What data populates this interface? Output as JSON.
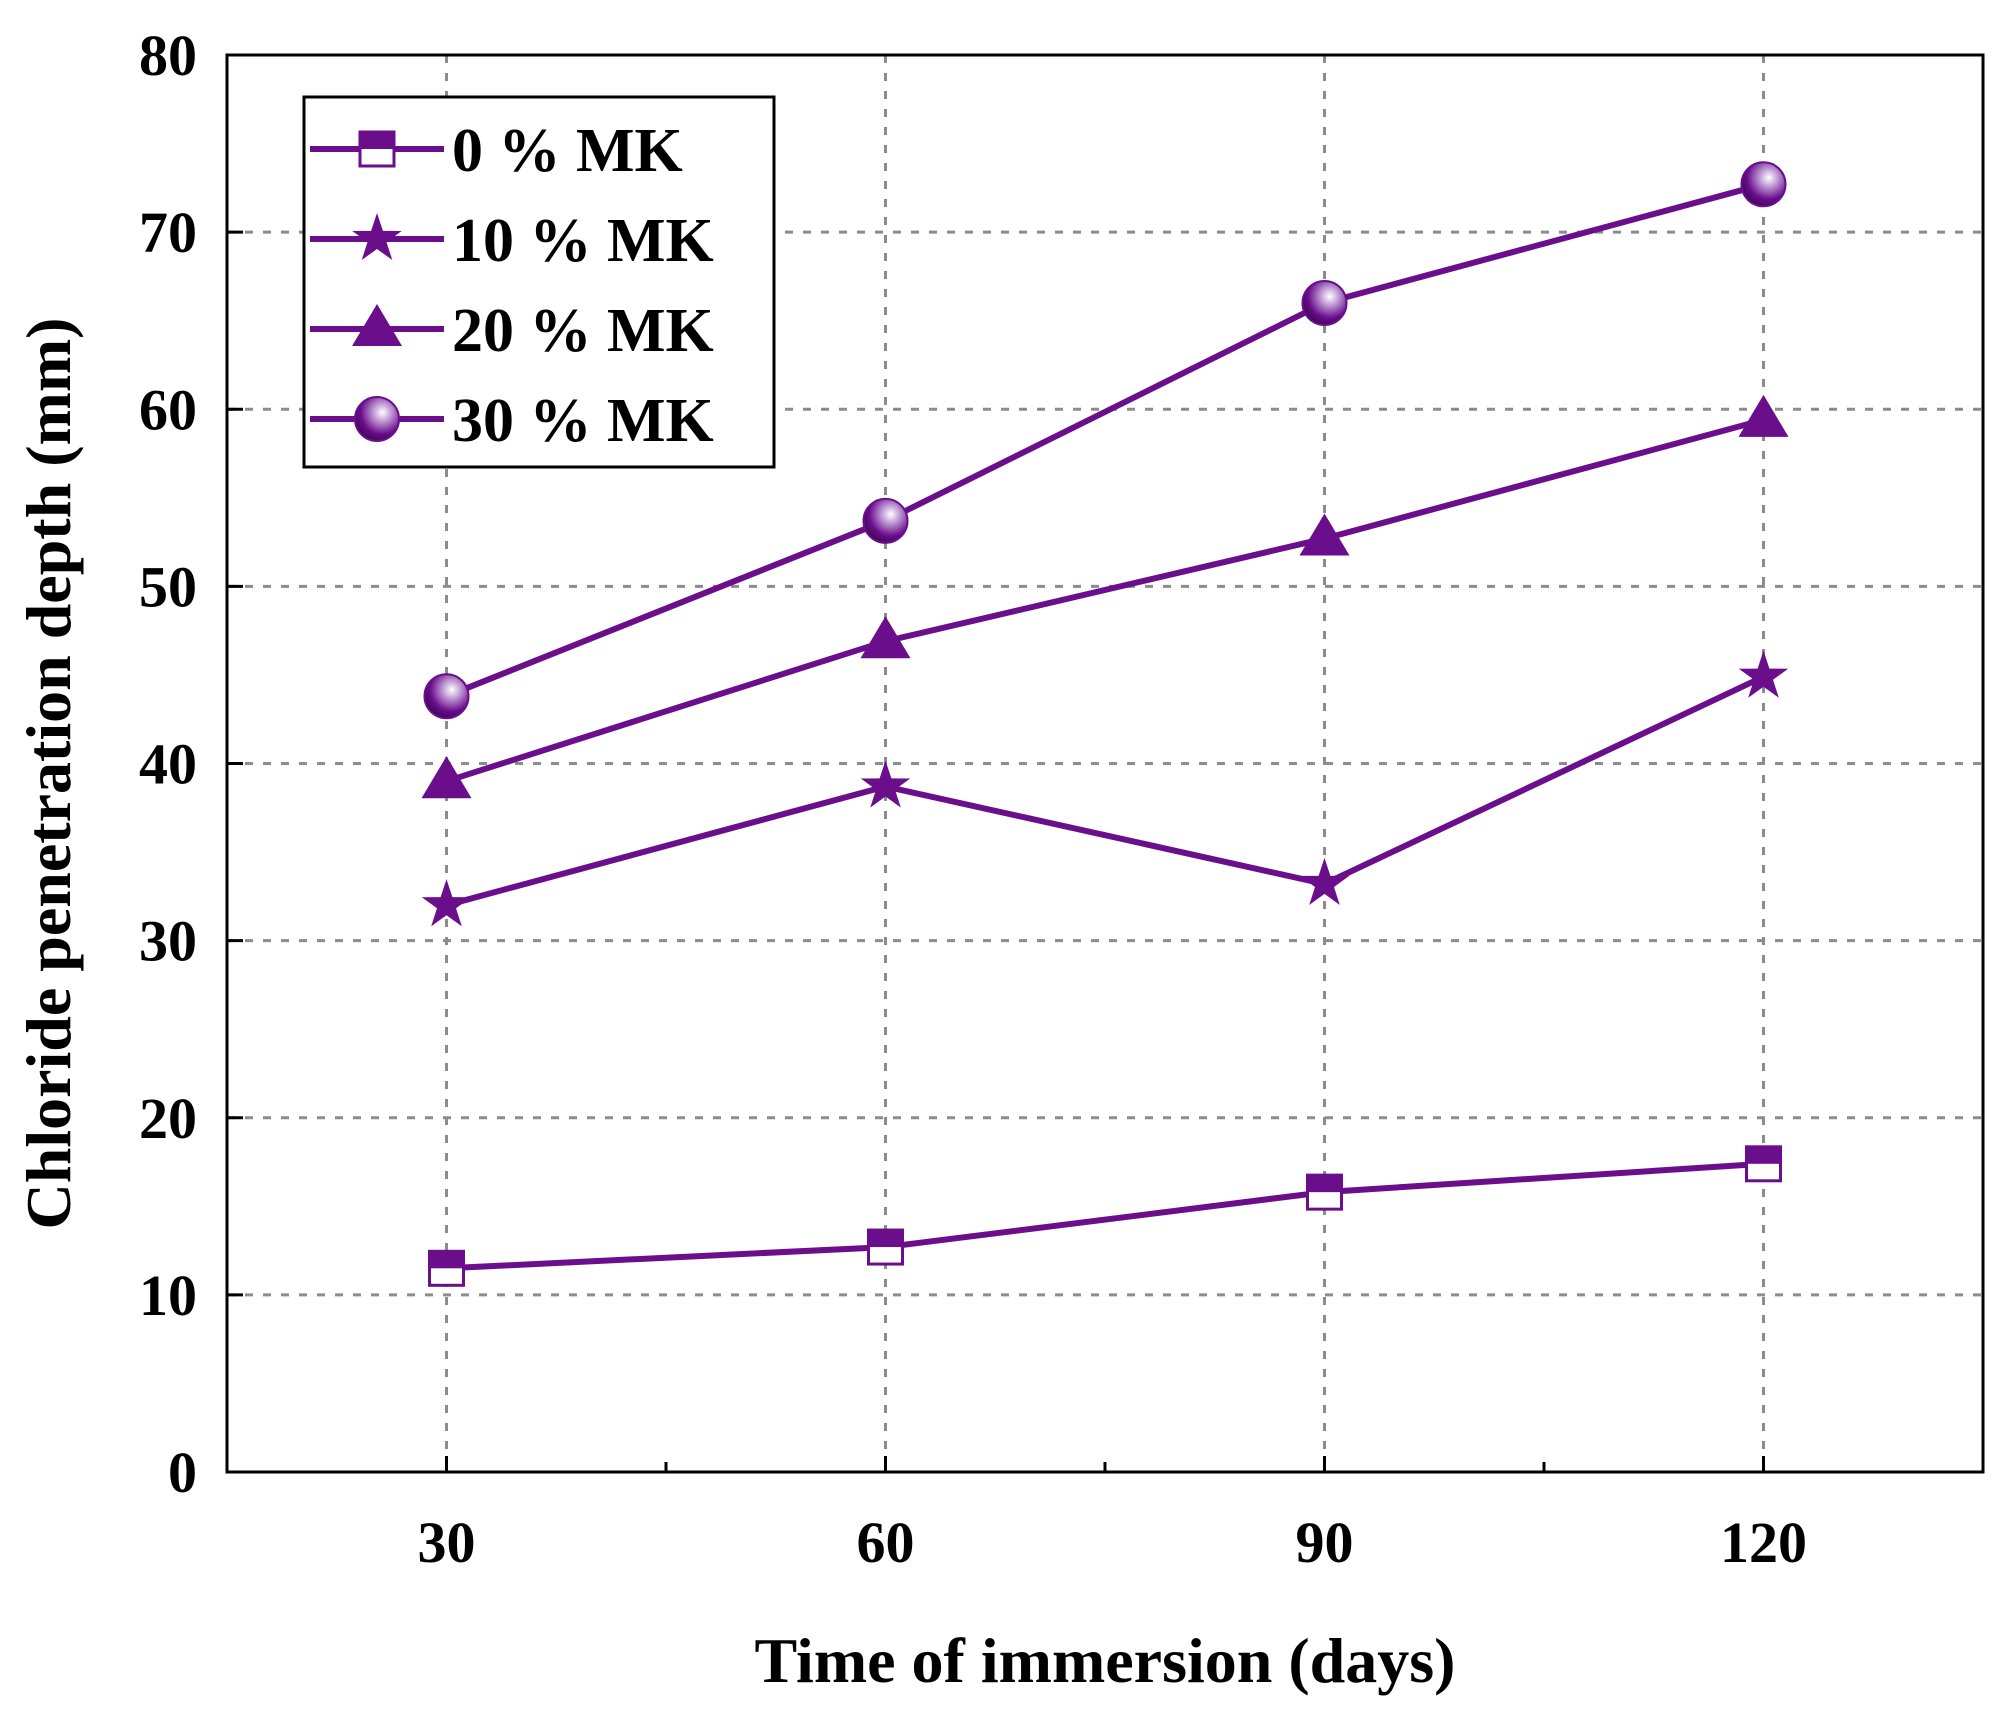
{
  "chart_data": {
    "type": "line",
    "title": "",
    "xlabel": "Time of immersion (days)",
    "ylabel": "Chloride penetration depth (mm)",
    "xlim": [
      15,
      135
    ],
    "ylim": [
      0,
      80
    ],
    "grid": true,
    "legend_position": "top-left",
    "x_ticks": [
      30,
      60,
      90,
      120
    ],
    "x_tick_labels": [
      "30",
      "60",
      "90",
      "120"
    ],
    "x_minor_ticks": [
      45,
      75,
      105
    ],
    "y_ticks": [
      0,
      10,
      20,
      30,
      40,
      50,
      60,
      70,
      80
    ],
    "y_tick_labels": [
      "0",
      "10",
      "20",
      "30",
      "40",
      "50",
      "60",
      "70",
      "80"
    ],
    "x": [
      30,
      60,
      90,
      120
    ],
    "series": [
      {
        "name": "0 % MK",
        "marker": "square-half",
        "values": [
          11.5,
          12.7,
          15.8,
          17.4
        ]
      },
      {
        "name": "10 % MK",
        "marker": "star",
        "values": [
          32.0,
          38.7,
          33.2,
          44.9
        ]
      },
      {
        "name": "20 % MK",
        "marker": "triangle",
        "values": [
          39.0,
          46.9,
          52.7,
          59.4
        ]
      },
      {
        "name": "30 % MK",
        "marker": "sphere",
        "values": [
          43.8,
          53.7,
          66.0,
          72.7
        ]
      }
    ],
    "colors": {
      "line": "#6a0e8c",
      "axis": "#000000",
      "grid": "#8c8c8c"
    }
  }
}
